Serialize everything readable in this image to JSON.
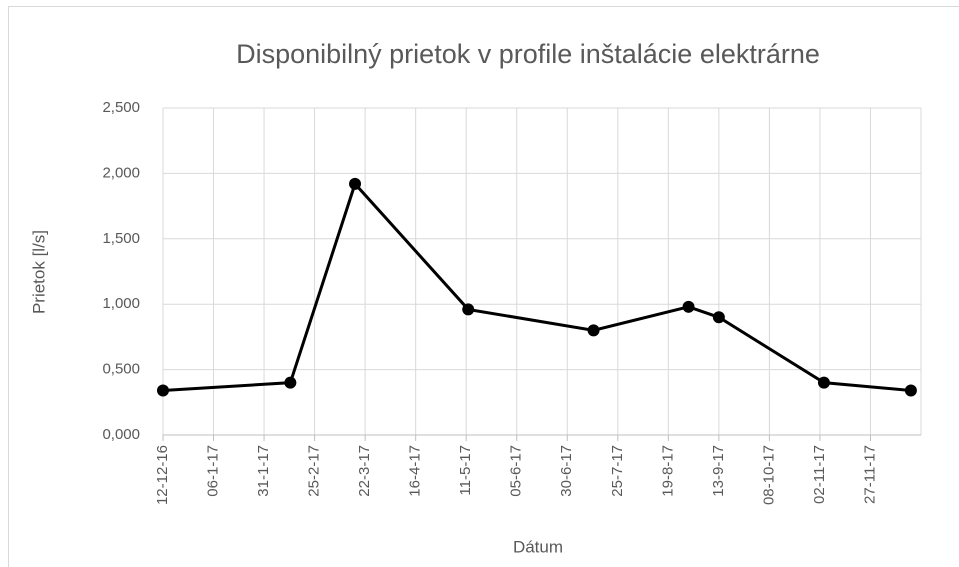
{
  "chart_data": {
    "type": "line",
    "title": "Disponibilný prietok v profile inštalácie elektrárne",
    "x_label": "Dátum",
    "y_label": "Prietok [l/s]",
    "x": [
      "2016-12-12",
      "2017-02-13",
      "2017-03-17",
      "2017-05-12",
      "2017-07-13",
      "2017-08-29",
      "2017-09-13",
      "2017-11-04",
      "2017-12-17"
    ],
    "values": [
      0.34,
      0.4,
      1.92,
      0.96,
      0.8,
      0.98,
      0.9,
      0.4,
      0.34
    ],
    "color": "#000000",
    "xlim": [
      "2016-12-12",
      "2017-12-22"
    ],
    "xticks": [
      {
        "value": "2016-12-12",
        "label": "12-12-16"
      },
      {
        "value": "2017-01-06",
        "label": "06-1-17"
      },
      {
        "value": "2017-01-31",
        "label": "31-1-17"
      },
      {
        "value": "2017-02-25",
        "label": "25-2-17"
      },
      {
        "value": "2017-03-22",
        "label": "22-3-17"
      },
      {
        "value": "2017-04-16",
        "label": "16-4-17"
      },
      {
        "value": "2017-05-11",
        "label": "11-5-17"
      },
      {
        "value": "2017-06-05",
        "label": "05-6-17"
      },
      {
        "value": "2017-06-30",
        "label": "30-6-17"
      },
      {
        "value": "2017-07-25",
        "label": "25-7-17"
      },
      {
        "value": "2017-08-19",
        "label": "19-8-17"
      },
      {
        "value": "2017-09-13",
        "label": "13-9-17"
      },
      {
        "value": "2017-10-08",
        "label": "08-10-17"
      },
      {
        "value": "2017-11-02",
        "label": "02-11-17"
      },
      {
        "value": "2017-11-27",
        "label": "27-11-17"
      }
    ],
    "ylim": [
      0,
      2.5
    ],
    "yticks": [
      {
        "value": 0,
        "label": "0,000"
      },
      {
        "value": 0.5,
        "label": "0,500"
      },
      {
        "value": 1,
        "label": "1,000"
      },
      {
        "value": 1.5,
        "label": "1,500"
      },
      {
        "value": 2,
        "label": "2,000"
      },
      {
        "value": 2.5,
        "label": "2,500"
      }
    ],
    "grid": true
  }
}
